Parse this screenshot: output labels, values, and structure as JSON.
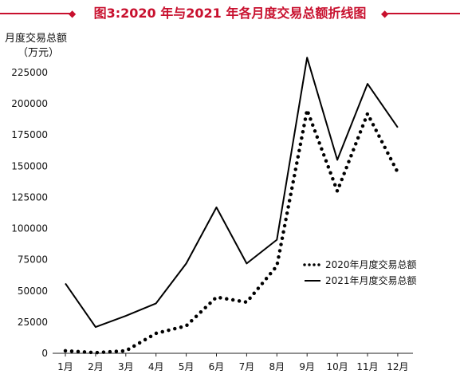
{
  "title": {
    "text": "图3:2020 年与2021 年各月度交易总额折线图",
    "color": "#c8102e"
  },
  "chart_data": {
    "type": "line",
    "title": "图3:2020 年与2021 年各月度交易总额折线图",
    "ylabel": "月度交易总额",
    "yunit": "（万元）",
    "categories": [
      "1月",
      "2月",
      "3月",
      "4月",
      "5月",
      "6月",
      "7月",
      "8月",
      "9月",
      "10月",
      "11月",
      "12月"
    ],
    "ylim": [
      0,
      225000
    ],
    "yticks": [
      0,
      25000,
      50000,
      75000,
      100000,
      125000,
      150000,
      175000,
      200000,
      225000
    ],
    "grid": false,
    "legend_position": "right",
    "series": [
      {
        "name": "2020年月度交易总额",
        "style": "dotted",
        "color": "#000000",
        "values": [
          2000,
          500,
          2000,
          16000,
          22000,
          45000,
          41000,
          70000,
          195000,
          130000,
          192000,
          145000
        ]
      },
      {
        "name": "2021年月度交易总额",
        "style": "solid",
        "color": "#000000",
        "values": [
          56000,
          21000,
          30000,
          40000,
          72000,
          117000,
          72000,
          91000,
          237000,
          155000,
          216000,
          181000
        ]
      }
    ]
  }
}
